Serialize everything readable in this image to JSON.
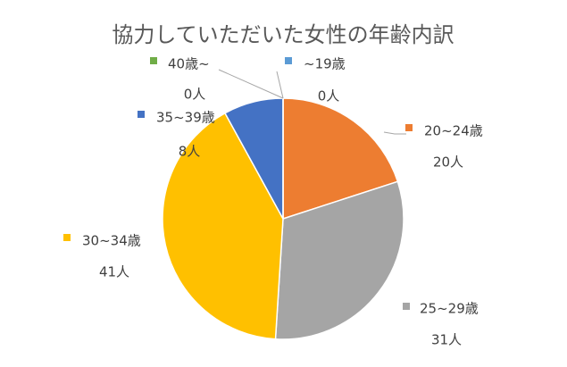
{
  "chart_data": {
    "type": "pie",
    "title": "協力していただいた女性の年齢内訳",
    "categories": [
      "~19歳",
      "20~24歳",
      "25~29歳",
      "30~34歳",
      "35~39歳",
      "40歳~"
    ],
    "values": [
      0,
      20,
      31,
      41,
      8,
      0
    ],
    "value_labels": [
      "0人",
      "20人",
      "31人",
      "41人",
      "8人",
      "0人"
    ],
    "colors": [
      "#5b9bd5",
      "#ed7d31",
      "#a5a5a5",
      "#ffc000",
      "#4472c4",
      "#70ad47"
    ]
  }
}
